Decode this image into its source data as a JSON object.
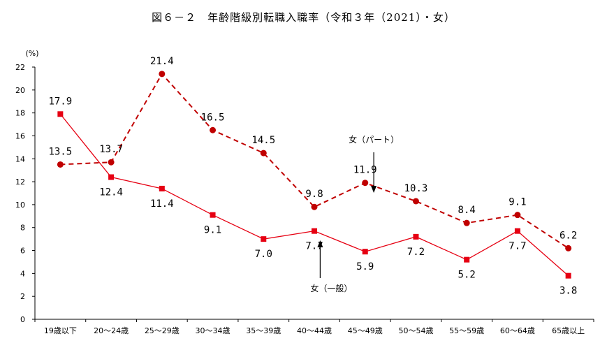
{
  "chart_data": {
    "type": "line",
    "title": "図６－２　年齢階級別転職入職率（令和３年（2021）・女）",
    "ylabel": "(%)",
    "xlabel": "",
    "ylim": [
      0,
      22
    ],
    "yticks": [
      0,
      2,
      4,
      6,
      8,
      10,
      12,
      14,
      16,
      18,
      20,
      22
    ],
    "grid": false,
    "categories": [
      "19歳以下",
      "20～24歳",
      "25～29歳",
      "30～34歳",
      "35～39歳",
      "40～44歳",
      "45～49歳",
      "50～54歳",
      "55～59歳",
      "60～64歳",
      "65歳以上"
    ],
    "series": [
      {
        "key": "general",
        "name": "女（一般）",
        "values": [
          17.9,
          12.4,
          11.4,
          9.1,
          7.0,
          7.7,
          5.9,
          7.2,
          5.2,
          7.7,
          3.8
        ],
        "labels": [
          "17.9",
          "12.4",
          "11.4",
          "9.1",
          "7.0",
          "7.7",
          "5.9",
          "7.2",
          "5.2",
          "7.7",
          "3.8"
        ],
        "color": "#e60012",
        "line_style": "solid",
        "marker": "square"
      },
      {
        "key": "part",
        "name": "女（パート）",
        "values": [
          13.5,
          13.7,
          21.4,
          16.5,
          14.5,
          9.8,
          11.9,
          10.3,
          8.4,
          9.1,
          6.2
        ],
        "labels": [
          "13.5",
          "13.7",
          "21.4",
          "16.5",
          "14.5",
          "9.8",
          "11.9",
          "10.3",
          "8.4",
          "9.1",
          "6.2"
        ],
        "color": "#c00000",
        "line_style": "dashed",
        "marker": "circle"
      }
    ],
    "annotations": [
      {
        "text": "女（パート）",
        "series": "part",
        "arrow": "down"
      },
      {
        "text": "女（一般）",
        "series": "general",
        "arrow": "up"
      }
    ]
  }
}
